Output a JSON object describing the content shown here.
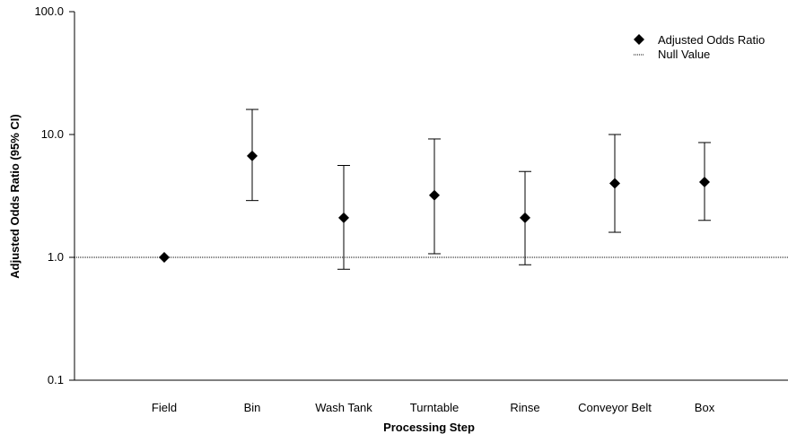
{
  "chart_data": {
    "type": "scatter",
    "title": "",
    "xlabel": "Processing Step",
    "ylabel": "Adjusted Odds Ratio (95% CI)",
    "yscale": "log",
    "ylim": [
      0.1,
      100
    ],
    "yticks": [
      "0.1",
      "1.0",
      "10.0",
      "100.0"
    ],
    "grid": false,
    "legend_position": "top-right",
    "categories": [
      "Field",
      "Bin",
      "Wash Tank",
      "Turntable",
      "Rinse",
      "Conveyor Belt",
      "Box"
    ],
    "series": [
      {
        "name": "Adjusted Odds Ratio",
        "marker": "diamond",
        "color": "#000000",
        "values": [
          1.0,
          6.7,
          2.1,
          3.2,
          2.1,
          4.0,
          4.1
        ],
        "ci_lower": [
          null,
          2.9,
          0.8,
          1.07,
          0.87,
          1.6,
          2.0
        ],
        "ci_upper": [
          null,
          16.0,
          5.6,
          9.2,
          5.0,
          10.0,
          8.6
        ]
      }
    ],
    "reference_line": {
      "name": "Null Value",
      "value": 1.0,
      "style": "dotted"
    }
  }
}
